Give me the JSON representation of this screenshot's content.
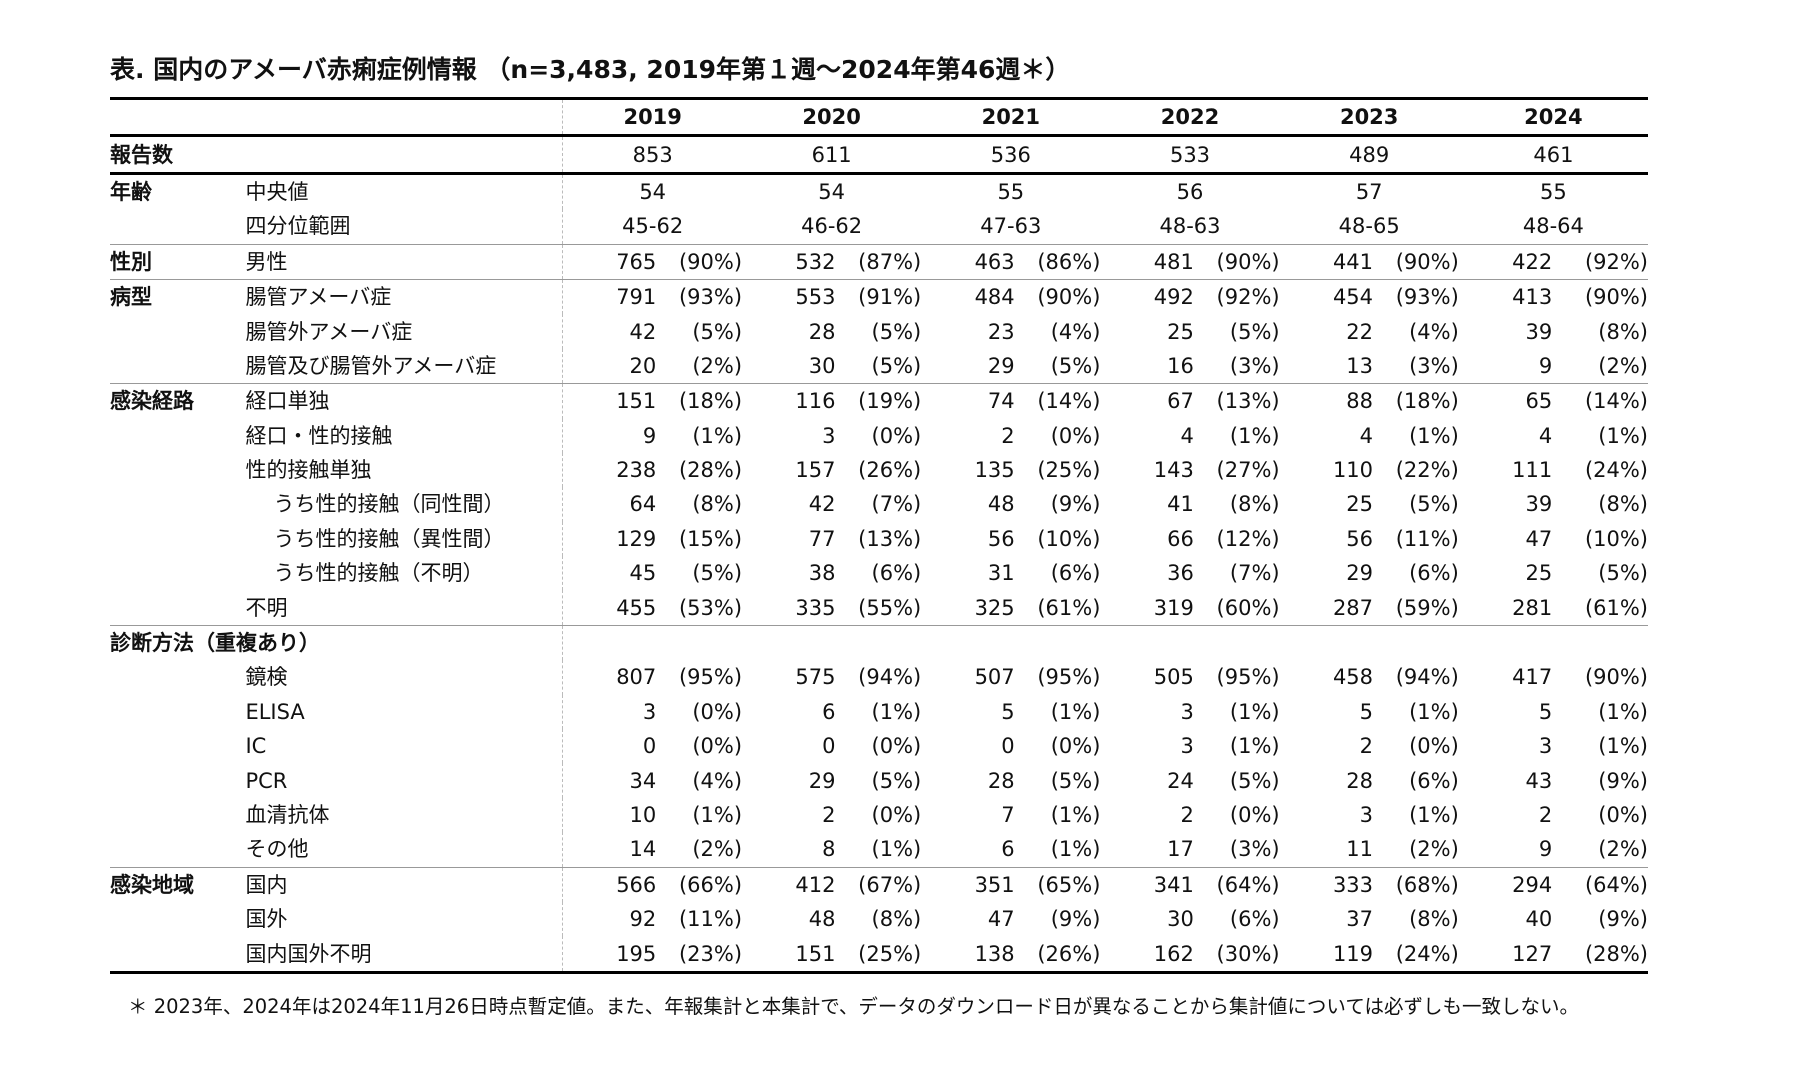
{
  "title": "表. 国内のアメーバ赤痢症例情報 （n=3,483, 2019年第１週～2024年第46週＊）",
  "years": [
    "2019",
    "2020",
    "2021",
    "2022",
    "2023",
    "2024"
  ],
  "reports": {
    "label": "報告数",
    "values": [
      "853",
      "611",
      "536",
      "533",
      "489",
      "461"
    ]
  },
  "age": {
    "label": "年齢",
    "median": {
      "label": "中央値",
      "values": [
        "54",
        "54",
        "55",
        "56",
        "57",
        "55"
      ]
    },
    "iqr": {
      "label": "四分位範囲",
      "values": [
        "45-62",
        "46-62",
        "47-63",
        "48-63",
        "48-65",
        "48-64"
      ]
    }
  },
  "sex": {
    "label": "性別",
    "rows": [
      {
        "label": "男性",
        "cells": [
          [
            "765",
            "(90%)"
          ],
          [
            "532",
            "(87%)"
          ],
          [
            "463",
            "(86%)"
          ],
          [
            "481",
            "(90%)"
          ],
          [
            "441",
            "(90%)"
          ],
          [
            "422",
            "(92%)"
          ]
        ]
      }
    ]
  },
  "disease_type": {
    "label": "病型",
    "rows": [
      {
        "label": "腸管アメーバ症",
        "cells": [
          [
            "791",
            "(93%)"
          ],
          [
            "553",
            "(91%)"
          ],
          [
            "484",
            "(90%)"
          ],
          [
            "492",
            "(92%)"
          ],
          [
            "454",
            "(93%)"
          ],
          [
            "413",
            "(90%)"
          ]
        ]
      },
      {
        "label": "腸管外アメーバ症",
        "cells": [
          [
            "42",
            "(5%)"
          ],
          [
            "28",
            "(5%)"
          ],
          [
            "23",
            "(4%)"
          ],
          [
            "25",
            "(5%)"
          ],
          [
            "22",
            "(4%)"
          ],
          [
            "39",
            "(8%)"
          ]
        ]
      },
      {
        "label": "腸管及び腸管外アメーバ症",
        "cells": [
          [
            "20",
            "(2%)"
          ],
          [
            "30",
            "(5%)"
          ],
          [
            "29",
            "(5%)"
          ],
          [
            "16",
            "(3%)"
          ],
          [
            "13",
            "(3%)"
          ],
          [
            "9",
            "(2%)"
          ]
        ]
      }
    ]
  },
  "route": {
    "label": "感染経路",
    "rows": [
      {
        "label": "経口単独",
        "cells": [
          [
            "151",
            "(18%)"
          ],
          [
            "116",
            "(19%)"
          ],
          [
            "74",
            "(14%)"
          ],
          [
            "67",
            "(13%)"
          ],
          [
            "88",
            "(18%)"
          ],
          [
            "65",
            "(14%)"
          ]
        ]
      },
      {
        "label": "経口・性的接触",
        "cells": [
          [
            "9",
            "(1%)"
          ],
          [
            "3",
            "(0%)"
          ],
          [
            "2",
            "(0%)"
          ],
          [
            "4",
            "(1%)"
          ],
          [
            "4",
            "(1%)"
          ],
          [
            "4",
            "(1%)"
          ]
        ]
      },
      {
        "label": "性的接触単独",
        "cells": [
          [
            "238",
            "(28%)"
          ],
          [
            "157",
            "(26%)"
          ],
          [
            "135",
            "(25%)"
          ],
          [
            "143",
            "(27%)"
          ],
          [
            "110",
            "(22%)"
          ],
          [
            "111",
            "(24%)"
          ]
        ]
      },
      {
        "label": "うち性的接触（同性間）",
        "cells": [
          [
            "64",
            "(8%)"
          ],
          [
            "42",
            "(7%)"
          ],
          [
            "48",
            "(9%)"
          ],
          [
            "41",
            "(8%)"
          ],
          [
            "25",
            "(5%)"
          ],
          [
            "39",
            "(8%)"
          ]
        ]
      },
      {
        "label": "うち性的接触（異性間）",
        "cells": [
          [
            "129",
            "(15%)"
          ],
          [
            "77",
            "(13%)"
          ],
          [
            "56",
            "(10%)"
          ],
          [
            "66",
            "(12%)"
          ],
          [
            "56",
            "(11%)"
          ],
          [
            "47",
            "(10%)"
          ]
        ]
      },
      {
        "label": "うち性的接触（不明）",
        "cells": [
          [
            "45",
            "(5%)"
          ],
          [
            "38",
            "(6%)"
          ],
          [
            "31",
            "(6%)"
          ],
          [
            "36",
            "(7%)"
          ],
          [
            "29",
            "(6%)"
          ],
          [
            "25",
            "(5%)"
          ]
        ]
      },
      {
        "label": "不明",
        "cells": [
          [
            "455",
            "(53%)"
          ],
          [
            "335",
            "(55%)"
          ],
          [
            "325",
            "(61%)"
          ],
          [
            "319",
            "(60%)"
          ],
          [
            "287",
            "(59%)"
          ],
          [
            "281",
            "(61%)"
          ]
        ]
      }
    ]
  },
  "diagnosis": {
    "label": "診断方法（重複あり）",
    "rows": [
      {
        "label": "鏡検",
        "cells": [
          [
            "807",
            "(95%)"
          ],
          [
            "575",
            "(94%)"
          ],
          [
            "507",
            "(95%)"
          ],
          [
            "505",
            "(95%)"
          ],
          [
            "458",
            "(94%)"
          ],
          [
            "417",
            "(90%)"
          ]
        ]
      },
      {
        "label": "ELISA",
        "cells": [
          [
            "3",
            "(0%)"
          ],
          [
            "6",
            "(1%)"
          ],
          [
            "5",
            "(1%)"
          ],
          [
            "3",
            "(1%)"
          ],
          [
            "5",
            "(1%)"
          ],
          [
            "5",
            "(1%)"
          ]
        ]
      },
      {
        "label": "IC",
        "cells": [
          [
            "0",
            "(0%)"
          ],
          [
            "0",
            "(0%)"
          ],
          [
            "0",
            "(0%)"
          ],
          [
            "3",
            "(1%)"
          ],
          [
            "2",
            "(0%)"
          ],
          [
            "3",
            "(1%)"
          ]
        ]
      },
      {
        "label": "PCR",
        "cells": [
          [
            "34",
            "(4%)"
          ],
          [
            "29",
            "(5%)"
          ],
          [
            "28",
            "(5%)"
          ],
          [
            "24",
            "(5%)"
          ],
          [
            "28",
            "(6%)"
          ],
          [
            "43",
            "(9%)"
          ]
        ]
      },
      {
        "label": "血清抗体",
        "cells": [
          [
            "10",
            "(1%)"
          ],
          [
            "2",
            "(0%)"
          ],
          [
            "7",
            "(1%)"
          ],
          [
            "2",
            "(0%)"
          ],
          [
            "3",
            "(1%)"
          ],
          [
            "2",
            "(0%)"
          ]
        ]
      },
      {
        "label": "その他",
        "cells": [
          [
            "14",
            "(2%)"
          ],
          [
            "8",
            "(1%)"
          ],
          [
            "6",
            "(1%)"
          ],
          [
            "17",
            "(3%)"
          ],
          [
            "11",
            "(2%)"
          ],
          [
            "9",
            "(2%)"
          ]
        ]
      }
    ]
  },
  "region": {
    "label": "感染地域",
    "rows": [
      {
        "label": "国内",
        "cells": [
          [
            "566",
            "(66%)"
          ],
          [
            "412",
            "(67%)"
          ],
          [
            "351",
            "(65%)"
          ],
          [
            "341",
            "(64%)"
          ],
          [
            "333",
            "(68%)"
          ],
          [
            "294",
            "(64%)"
          ]
        ]
      },
      {
        "label": "国外",
        "cells": [
          [
            "92",
            "(11%)"
          ],
          [
            "48",
            "(8%)"
          ],
          [
            "47",
            "(9%)"
          ],
          [
            "30",
            "(6%)"
          ],
          [
            "37",
            "(8%)"
          ],
          [
            "40",
            "(9%)"
          ]
        ]
      },
      {
        "label": "国内国外不明",
        "cells": [
          [
            "195",
            "(23%)"
          ],
          [
            "151",
            "(25%)"
          ],
          [
            "138",
            "(26%)"
          ],
          [
            "162",
            "(30%)"
          ],
          [
            "119",
            "(24%)"
          ],
          [
            "127",
            "(28%)"
          ]
        ]
      }
    ]
  },
  "footnote": "＊ 2023年、2024年は2024年11月26日時点暫定値。また、年報集計と本集計で、データのダウンロード日が異なることから集計値については必ずしも一致しない。"
}
